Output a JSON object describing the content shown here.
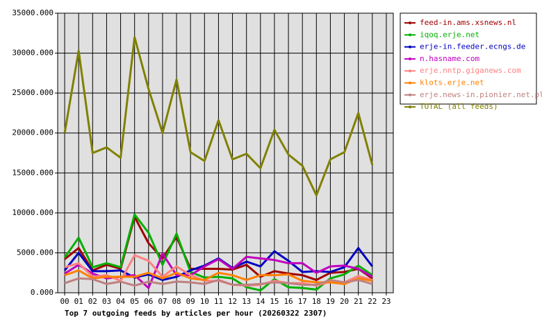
{
  "chart_data": {
    "type": "line",
    "title": "Top 7 outgoing feeds by articles per hour (20260322 2307)",
    "categories": [
      "00",
      "01",
      "02",
      "03",
      "04",
      "05",
      "06",
      "07",
      "08",
      "09",
      "10",
      "11",
      "12",
      "13",
      "14",
      "15",
      "16",
      "17",
      "18",
      "19",
      "20",
      "21",
      "22",
      "23"
    ],
    "ylim": [
      0,
      35000
    ],
    "yticks": [
      {
        "value": 0,
        "label": "0.000"
      },
      {
        "value": 5000,
        "label": "5000.000"
      },
      {
        "value": 10000,
        "label": "10000.000"
      },
      {
        "value": 15000,
        "label": "15000.000"
      },
      {
        "value": 20000,
        "label": "20000.000"
      },
      {
        "value": 25000,
        "label": "25000.000"
      },
      {
        "value": 30000,
        "label": "30000.000"
      },
      {
        "value": 35000,
        "label": "35000.000"
      }
    ],
    "grid": true,
    "legend": "right",
    "series": [
      {
        "name": "feed-in.ams.xsnews.nl",
        "color": "#a00000",
        "values": [
          4200,
          5600,
          2800,
          3500,
          3000,
          9500,
          6200,
          4300,
          7000,
          3000,
          3000,
          3000,
          2900,
          3500,
          2000,
          2700,
          2400,
          2200,
          1600,
          2500,
          2600,
          3000,
          1800,
          null
        ]
      },
      {
        "name": "iqoq.erje.net",
        "color": "#00b000",
        "values": [
          4400,
          6900,
          3200,
          3700,
          3200,
          9800,
          7500,
          3500,
          7400,
          2600,
          1900,
          2000,
          1800,
          700,
          300,
          1700,
          700,
          600,
          400,
          1800,
          2300,
          3400,
          2200,
          null
        ]
      },
      {
        "name": "erje-in.feeder.ecngs.de",
        "color": "#0000c0",
        "values": [
          2800,
          5000,
          2700,
          2700,
          2800,
          1900,
          2300,
          1600,
          2000,
          2800,
          3400,
          4300,
          3100,
          3900,
          3300,
          5200,
          4000,
          2600,
          2700,
          2600,
          3200,
          5600,
          3300,
          null
        ]
      },
      {
        "name": "n.hasname.com",
        "color": "#c000c0",
        "values": [
          2400,
          3500,
          2400,
          1800,
          2000,
          2200,
          600,
          4900,
          2200,
          2200,
          3300,
          4200,
          3000,
          4500,
          4300,
          4100,
          3700,
          3700,
          2500,
          3300,
          3400,
          3000,
          2000,
          null
        ]
      },
      {
        "name": "erje.nntp.giganews.com",
        "color": "#ff8080",
        "values": [
          3200,
          3700,
          2000,
          2200,
          1500,
          4700,
          4000,
          2000,
          3300,
          2200,
          1500,
          1500,
          1000,
          900,
          1000,
          1500,
          1200,
          1200,
          900,
          1400,
          1300,
          2100,
          1600,
          null
        ]
      },
      {
        "name": "klots.erje.net",
        "color": "#ff8000",
        "values": [
          2200,
          2800,
          1800,
          2000,
          2000,
          2000,
          2500,
          1800,
          2500,
          1800,
          1600,
          2500,
          2200,
          1600,
          2200,
          2200,
          2300,
          1500,
          1300,
          1300,
          1100,
          1800,
          1500,
          null
        ]
      },
      {
        "name": "erje.news-in.pionier.net.pl",
        "color": "#c08080",
        "values": [
          1200,
          1800,
          1700,
          1100,
          1400,
          900,
          1400,
          1100,
          1400,
          1300,
          1100,
          1600,
          1000,
          1000,
          1100,
          1300,
          1200,
          1000,
          1000,
          1600,
          1300,
          1600,
          1100,
          null
        ]
      },
      {
        "name": "TOTAL (all feeds)",
        "color": "#808000",
        "values": [
          20000,
          30300,
          17500,
          18200,
          16900,
          32000,
          25500,
          20000,
          26700,
          17600,
          16500,
          21600,
          16700,
          17400,
          15600,
          20400,
          17300,
          15900,
          12200,
          16700,
          17600,
          22500,
          16000,
          null
        ]
      }
    ]
  }
}
